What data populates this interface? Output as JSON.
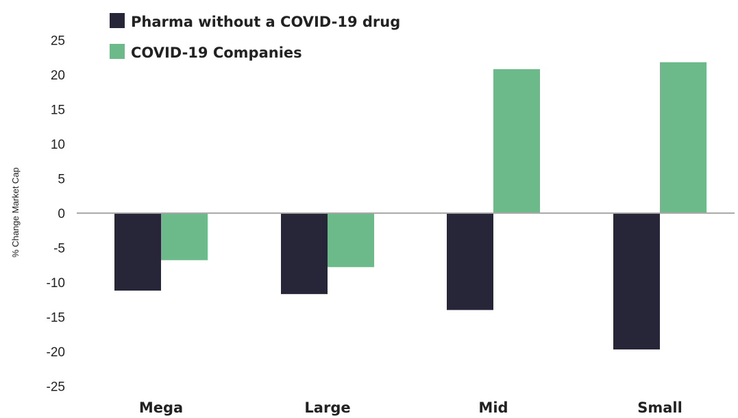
{
  "chart_data": {
    "type": "bar",
    "categories": [
      "Mega",
      "Large",
      "Mid",
      "Small"
    ],
    "series": [
      {
        "name": "Pharma without a COVID-19 drug",
        "values": [
          -11.2,
          -11.7,
          -14,
          -19.7
        ],
        "color": "#262638"
      },
      {
        "name": "COVID-19 Companies",
        "values": [
          -6.8,
          -7.8,
          20.8,
          21.8
        ],
        "color": "#6cba8a"
      }
    ],
    "title": "",
    "xlabel": "",
    "ylabel": "% Change Market Cap",
    "ylim": [
      -25,
      25
    ],
    "yticks": [
      25,
      20,
      15,
      10,
      5,
      0,
      -5,
      -10,
      -15,
      -20,
      -25
    ],
    "grid": false,
    "legend_position": "top-left",
    "zero_line_color": "#a9a9a9"
  }
}
